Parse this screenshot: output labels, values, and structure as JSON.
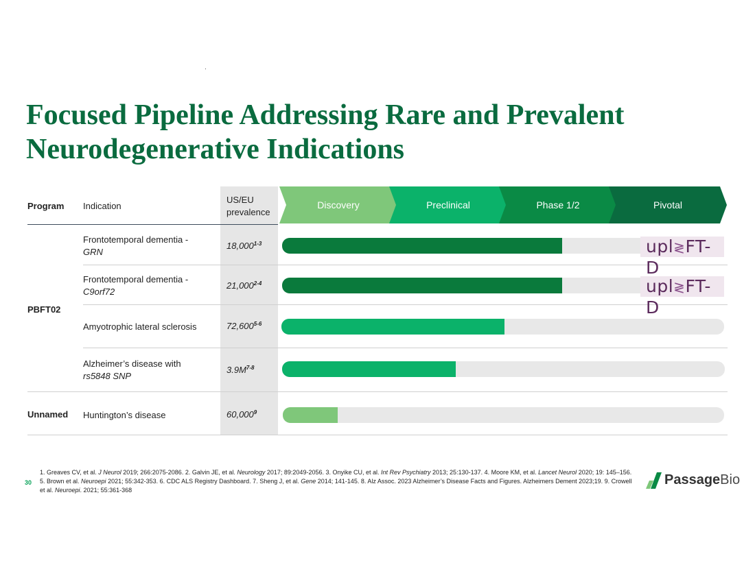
{
  "title": "Focused Pipeline Addressing Rare and Prevalent Neurodegenerative Indications",
  "header": {
    "program": "Program",
    "indication": "Indication",
    "prevalence_line1": "US/EU",
    "prevalence_line2": "prevalence",
    "phases": [
      "Discovery",
      "Preclinical",
      "Phase 1/2",
      "Pivotal"
    ]
  },
  "colors": {
    "title": "#0a6b3f",
    "discovery": "#7fc77a",
    "preclinical": "#0bb26a",
    "phase12": "#0a8a45",
    "pivotal": "#0a6b3f",
    "bar_dark": "#0a7a3c",
    "bar_mid": "#0bb26a",
    "bar_light": "#7fc77a",
    "track": "#e8e8e8"
  },
  "rows": [
    {
      "program": "PBFT02",
      "indication_line1": "Frontotemporal dementia -",
      "indication_line2": "GRN",
      "prevalence": "18,000",
      "ref": "1-3",
      "progress_fraction": 0.634,
      "bar_color": "#0a7a3c",
      "logo": "upliFT-D"
    },
    {
      "program": "PBFT02",
      "indication_line1": "Frontotemporal dementia -",
      "indication_line2": "C9orf72",
      "prevalence": "21,000",
      "ref": "2-4",
      "progress_fraction": 0.634,
      "bar_color": "#0a7a3c",
      "logo": "upliFT-D"
    },
    {
      "program": "PBFT02",
      "indication_line1": "Amyotrophic lateral sclerosis",
      "indication_line2": "",
      "prevalence": "72,600",
      "ref": "5-6",
      "progress_fraction": 0.504,
      "bar_color": "#0bb26a",
      "logo": ""
    },
    {
      "program": "PBFT02",
      "indication_line1": "Alzheimer’s disease with",
      "indication_line2": "rs5848 SNP",
      "prevalence": "3.9M",
      "ref": "7-8",
      "progress_fraction": 0.393,
      "bar_color": "#0bb26a",
      "logo": ""
    },
    {
      "program": "Unnamed",
      "indication_line1": "Huntington’s disease",
      "indication_line2": "",
      "prevalence": "60,000",
      "ref": "9",
      "progress_fraction": 0.125,
      "bar_color": "#7fc77a",
      "logo": ""
    }
  ],
  "programs": {
    "pbft02": "PBFT02",
    "unnamed": "Unnamed"
  },
  "logo_text": {
    "prefix": "upl",
    "suffix": "FT-D"
  },
  "footer": {
    "page_number": "30",
    "footnote_parts": [
      "1. Greaves CV, et al. ",
      "J Neurol",
      " 2019; 266:2075-2086. 2. Galvin JE, et al. ",
      "Neurology",
      " 2017; 89:2049-2056. 3. Onyike CU, et al. ",
      "Int Rev Psychiatry",
      " 2013; 25:130-137. 4. Moore KM, et al. ",
      "Lancet Neurol",
      " 2020; 19: 145–156. 5. Brown et al. ",
      "Neuroepi",
      " 2021; 55:342-353. 6. CDC ALS Registry Dashboard. 7. Sheng J, et al. ",
      "Gene",
      " 2014; 141-145. 8. Alz Assoc. 2023 Alzheimer’s Disease Facts and Figures. Alzheimers Dement 2023;19. 9. Crowell et al. ",
      "Neuroepi",
      ". 2021; 55:361-368"
    ],
    "brand_bold": "Passage",
    "brand_light": "Bio"
  }
}
